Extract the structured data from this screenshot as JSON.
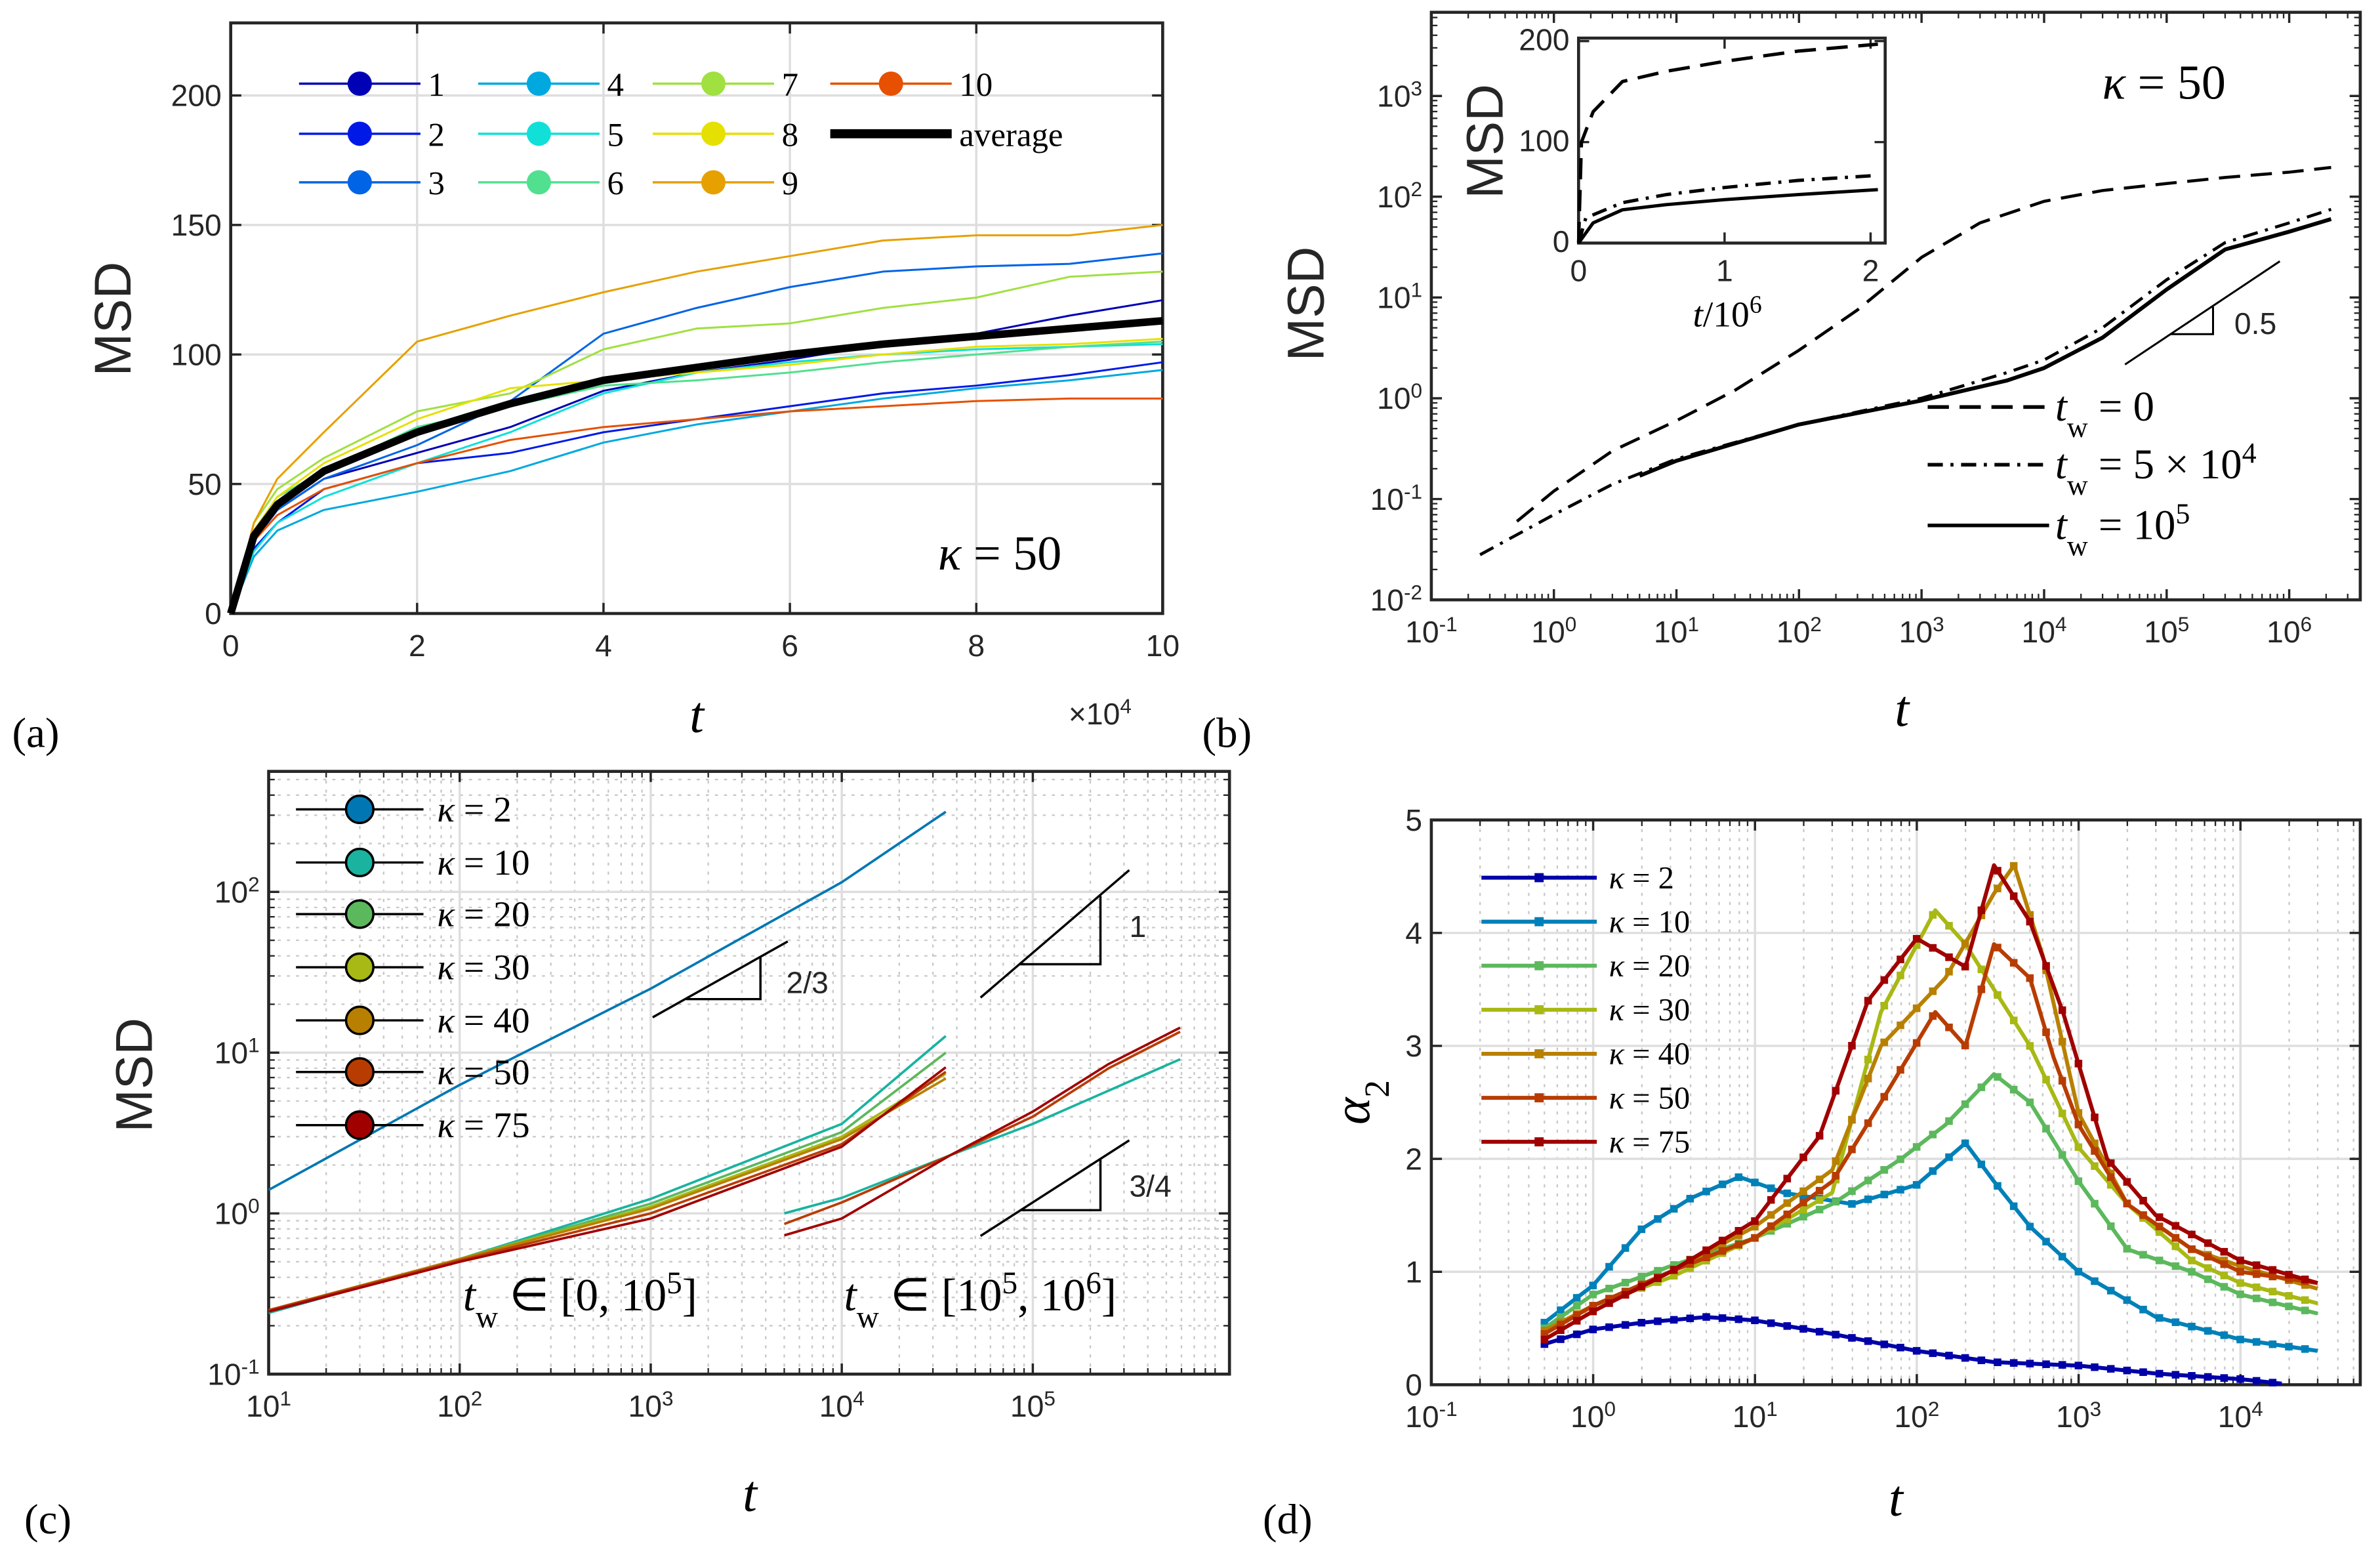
{
  "panels": {
    "a": "(a)",
    "b": "(b)",
    "c": "(c)",
    "d": "(d)"
  },
  "chart_data": [
    {
      "id": "a",
      "type": "line",
      "xlabel": "t",
      "ylabel": "MSD",
      "x_multiplier": "×10^4",
      "xlim": [
        0,
        10
      ],
      "ylim": [
        0,
        228
      ],
      "xscale": "linear",
      "yscale": "linear",
      "grid": true,
      "xticks": [
        0,
        2,
        4,
        6,
        8,
        10
      ],
      "yticks": [
        0,
        50,
        100,
        150,
        200
      ],
      "annotation": "κ = 50",
      "legend": "top-left, 4 columns",
      "x": [
        0,
        0.25,
        0.5,
        1,
        2,
        3,
        4,
        5,
        6,
        7,
        8,
        9,
        10
      ],
      "series": [
        {
          "name": "1",
          "color": "#0000b4",
          "values": [
            0,
            28,
            40,
            52,
            62,
            72,
            86,
            93,
            98,
            104,
            108,
            115,
            121
          ]
        },
        {
          "name": "2",
          "color": "#0019e6",
          "values": [
            0,
            25,
            35,
            48,
            58,
            62,
            70,
            75,
            80,
            85,
            88,
            92,
            97
          ]
        },
        {
          "name": "3",
          "color": "#0064e6",
          "values": [
            0,
            28,
            40,
            52,
            65,
            82,
            108,
            118,
            126,
            132,
            134,
            135,
            139
          ]
        },
        {
          "name": "4",
          "color": "#00a8e0",
          "values": [
            0,
            22,
            32,
            40,
            47,
            55,
            66,
            73,
            78,
            83,
            87,
            90,
            94
          ]
        },
        {
          "name": "5",
          "color": "#10e0d8",
          "values": [
            0,
            24,
            35,
            45,
            58,
            70,
            85,
            93,
            97,
            100,
            102,
            103,
            104
          ]
        },
        {
          "name": "6",
          "color": "#50e090",
          "values": [
            0,
            32,
            45,
            55,
            72,
            80,
            88,
            90,
            93,
            97,
            100,
            103,
            105
          ]
        },
        {
          "name": "7",
          "color": "#a0e040",
          "values": [
            0,
            35,
            48,
            60,
            78,
            85,
            102,
            110,
            112,
            118,
            122,
            130,
            132
          ]
        },
        {
          "name": "8",
          "color": "#e6e000",
          "values": [
            0,
            32,
            45,
            58,
            75,
            87,
            90,
            93,
            96,
            100,
            103,
            104,
            106
          ]
        },
        {
          "name": "9",
          "color": "#e6a000",
          "values": [
            0,
            35,
            52,
            70,
            105,
            115,
            124,
            132,
            138,
            144,
            146,
            146,
            150
          ]
        },
        {
          "name": "10",
          "color": "#e65000",
          "values": [
            0,
            28,
            38,
            48,
            58,
            67,
            72,
            75,
            78,
            80,
            82,
            83,
            83
          ]
        },
        {
          "name": "average",
          "color": "#000000",
          "values": [
            0,
            30,
            42,
            55,
            70,
            81,
            90,
            95,
            100,
            104,
            107,
            110,
            113
          ]
        }
      ]
    },
    {
      "id": "b",
      "type": "line",
      "xlabel": "t",
      "ylabel": "MSD",
      "xscale": "log",
      "yscale": "log",
      "xlim": [
        0.1,
        3800000
      ],
      "ylim": [
        0.01,
        6760
      ],
      "grid": false,
      "xticks": [
        0.1,
        1,
        10,
        100,
        1000,
        10000,
        100000,
        1000000
      ],
      "yticks": [
        0.01,
        0.1,
        1,
        10,
        100,
        1000
      ],
      "annotation": "κ = 50",
      "slope_label": "0.5",
      "legend": "bottom-right",
      "series": [
        {
          "name": "t_w = 0",
          "style": "dashed",
          "x": [
            0.5,
            1,
            3,
            10,
            30,
            100,
            300,
            1000,
            3000,
            10000,
            30000,
            100000,
            300000,
            1000000,
            2200000
          ],
          "y": [
            0.06,
            0.12,
            0.3,
            0.6,
            1.2,
            3,
            7.5,
            25,
            55,
            90,
            115,
            135,
            155,
            175,
            195
          ]
        },
        {
          "name": "t_w = 5 × 10^4",
          "style": "dashdot",
          "x": [
            0.25,
            1,
            3,
            10,
            100,
            1000,
            5000,
            10000,
            30000,
            100000,
            300000,
            1000000,
            2200000
          ],
          "y": [
            0.028,
            0.07,
            0.14,
            0.25,
            0.55,
            1.0,
            1.8,
            2.4,
            5,
            15,
            35,
            55,
            75
          ]
        },
        {
          "name": "t_w = 10^5",
          "style": "solid",
          "x": [
            5,
            10,
            100,
            1000,
            5000,
            10000,
            30000,
            100000,
            300000,
            1000000,
            2200000
          ],
          "y": [
            0.17,
            0.24,
            0.55,
            0.95,
            1.5,
            2.0,
            4,
            12,
            30,
            45,
            60
          ]
        }
      ],
      "inset": {
        "xlabel": "t/10^6",
        "ylabel": "MSD",
        "xlim": [
          0,
          2.1
        ],
        "ylim": [
          0,
          203
        ],
        "xticks": [
          0,
          1,
          2
        ],
        "yticks": [
          0,
          100,
          200
        ],
        "series": [
          {
            "style": "dashed",
            "x": [
              0,
              0.02,
              0.1,
              0.3,
              0.6,
              1,
              1.5,
              2.05
            ],
            "y": [
              0,
              100,
              130,
              160,
              170,
              180,
              190,
              197
            ]
          },
          {
            "style": "dashdot",
            "x": [
              0,
              0.05,
              0.3,
              0.6,
              1,
              1.5,
              2.05
            ],
            "y": [
              0,
              25,
              40,
              48,
              55,
              62,
              67
            ]
          },
          {
            "style": "solid",
            "x": [
              0,
              0.1,
              0.3,
              0.6,
              1,
              1.5,
              2.05
            ],
            "y": [
              0,
              20,
              33,
              38,
              43,
              48,
              53
            ]
          }
        ]
      }
    },
    {
      "id": "c",
      "type": "line",
      "xlabel": "t",
      "ylabel": "MSD",
      "xscale": "log",
      "yscale": "log",
      "xlim": [
        10,
        1070000
      ],
      "ylim": [
        0.1,
        562
      ],
      "grid": true,
      "xticks": [
        10,
        100,
        1000,
        10000,
        100000
      ],
      "yticks": [
        0.1,
        1,
        10,
        100
      ],
      "legend": "top-left",
      "slope_labels": [
        "2/3",
        "1",
        "3/4"
      ],
      "annotations": [
        "t_w ∈ [0, 10^5]",
        "t_w ∈ [10^5, 10^6]"
      ],
      "series": [
        {
          "name": "κ = 2",
          "color": "#0077b3",
          "x": [
            10,
            100,
            1000,
            10000,
            35000
          ],
          "y": [
            1.4,
            6.3,
            25,
            115,
            315
          ]
        },
        {
          "name": "κ = 10",
          "color": "#19b3a0",
          "x": [
            10,
            100,
            1000,
            10000,
            35000
          ],
          "y": [
            0.24,
            0.52,
            1.23,
            3.6,
            12.7
          ]
        },
        {
          "name": "κ = 20",
          "color": "#5cb85c",
          "x": [
            10,
            100,
            1000,
            10000,
            35000
          ],
          "y": [
            0.245,
            0.52,
            1.15,
            3.2,
            10
          ]
        },
        {
          "name": "κ = 30",
          "color": "#a8b814",
          "x": [
            10,
            100,
            1000,
            10000,
            35000
          ],
          "y": [
            0.25,
            0.52,
            1.1,
            3.0,
            7.4
          ]
        },
        {
          "name": "κ = 40",
          "color": "#b88000",
          "x": [
            10,
            100,
            1000,
            10000,
            35000
          ],
          "y": [
            0.25,
            0.52,
            1.07,
            2.9,
            6.9
          ]
        },
        {
          "name": "κ = 50",
          "color": "#b83c00",
          "x": [
            10,
            100,
            1000,
            10000,
            35000
          ],
          "y": [
            0.25,
            0.51,
            1.0,
            2.7,
            7.6
          ]
        },
        {
          "name": "κ = 75",
          "color": "#a00000",
          "x": [
            10,
            100,
            1000,
            10000,
            35000
          ],
          "y": [
            0.245,
            0.5,
            0.93,
            2.6,
            8.1
          ]
        },
        {
          "name": "",
          "color": "#19b3a0",
          "x": [
            5000,
            10000,
            37000,
            100000,
            590000
          ],
          "y": [
            1.0,
            1.25,
            2.3,
            3.6,
            9.1
          ]
        },
        {
          "name": "",
          "color": "#b83c00",
          "x": [
            5000,
            10000,
            37000,
            100000,
            250000,
            590000
          ],
          "y": [
            0.86,
            1.17,
            2.3,
            4.0,
            8.0,
            13.5
          ]
        },
        {
          "name": "",
          "color": "#a00000",
          "x": [
            5000,
            10000,
            37000,
            100000,
            250000,
            590000
          ],
          "y": [
            0.73,
            0.93,
            2.3,
            4.3,
            8.5,
            14.3
          ]
        }
      ]
    },
    {
      "id": "d",
      "type": "line",
      "xlabel": "t",
      "ylabel": "α_2",
      "xscale": "log",
      "yscale": "linear",
      "xlim": [
        0.1,
        55000
      ],
      "ylim": [
        0,
        5
      ],
      "grid": true,
      "xticks": [
        0.1,
        1,
        10,
        100,
        1000,
        10000
      ],
      "yticks": [
        0,
        1,
        2,
        3,
        4,
        5
      ],
      "legend": "top-left",
      "series": [
        {
          "name": "κ = 2",
          "color": "#0000a8",
          "x": [
            0.5,
            1,
            2,
            5,
            10,
            30,
            100,
            300,
            1000,
            3000,
            10000,
            18000
          ],
          "y": [
            0.36,
            0.49,
            0.55,
            0.6,
            0.57,
            0.45,
            0.3,
            0.2,
            0.17,
            0.1,
            0.05,
            0.01
          ]
        },
        {
          "name": "κ = 10",
          "color": "#0080b8",
          "x": [
            0.5,
            1,
            2,
            4,
            8,
            15,
            40,
            100,
            200,
            300,
            500,
            1000,
            3000,
            10000,
            30000
          ],
          "y": [
            0.55,
            0.88,
            1.38,
            1.65,
            1.84,
            1.7,
            1.6,
            1.77,
            2.14,
            1.8,
            1.4,
            1.0,
            0.6,
            0.4,
            0.3
          ]
        },
        {
          "name": "κ = 20",
          "color": "#5cb85c",
          "x": [
            0.5,
            1,
            3,
            10,
            30,
            80,
            150,
            300,
            500,
            1000,
            2000,
            5000,
            10000,
            30000
          ],
          "y": [
            0.5,
            0.8,
            1.05,
            1.3,
            1.6,
            2.0,
            2.3,
            2.75,
            2.5,
            1.8,
            1.2,
            1.0,
            0.8,
            0.63
          ]
        },
        {
          "name": "κ = 30",
          "color": "#a8b814",
          "x": [
            0.5,
            1,
            3,
            10,
            30,
            60,
            130,
            200,
            300,
            500,
            1000,
            2000,
            5000,
            10000,
            30000
          ],
          "y": [
            0.45,
            0.7,
            0.95,
            1.3,
            1.7,
            3.3,
            4.2,
            3.9,
            3.5,
            3.0,
            2.1,
            1.6,
            1.1,
            0.9,
            0.72
          ]
        },
        {
          "name": "κ = 40",
          "color": "#b88000",
          "x": [
            0.5,
            1,
            3,
            10,
            30,
            60,
            150,
            300,
            400,
            600,
            1000,
            2000,
            5000,
            10000,
            30000
          ],
          "y": [
            0.48,
            0.7,
            1.0,
            1.4,
            1.9,
            3.0,
            3.6,
            4.35,
            4.6,
            3.8,
            2.4,
            1.6,
            1.2,
            1.05,
            0.85
          ]
        },
        {
          "name": "κ = 50",
          "color": "#b83c00",
          "x": [
            0.5,
            1,
            3,
            10,
            30,
            60,
            130,
            200,
            300,
            500,
            700,
            1000,
            2000,
            5000,
            10000,
            30000
          ],
          "y": [
            0.45,
            0.7,
            1.0,
            1.3,
            1.8,
            2.5,
            3.3,
            3.0,
            3.9,
            3.6,
            2.9,
            2.3,
            1.6,
            1.2,
            1.0,
            0.9
          ]
        },
        {
          "name": "κ = 75",
          "color": "#a00000",
          "x": [
            0.5,
            1,
            3,
            10,
            25,
            50,
            100,
            200,
            300,
            500,
            800,
            1500,
            3000,
            10000,
            30000
          ],
          "y": [
            0.4,
            0.65,
            1.0,
            1.45,
            2.2,
            3.4,
            3.95,
            3.7,
            4.6,
            4.1,
            3.3,
            2.0,
            1.5,
            1.1,
            0.9
          ]
        }
      ]
    }
  ]
}
